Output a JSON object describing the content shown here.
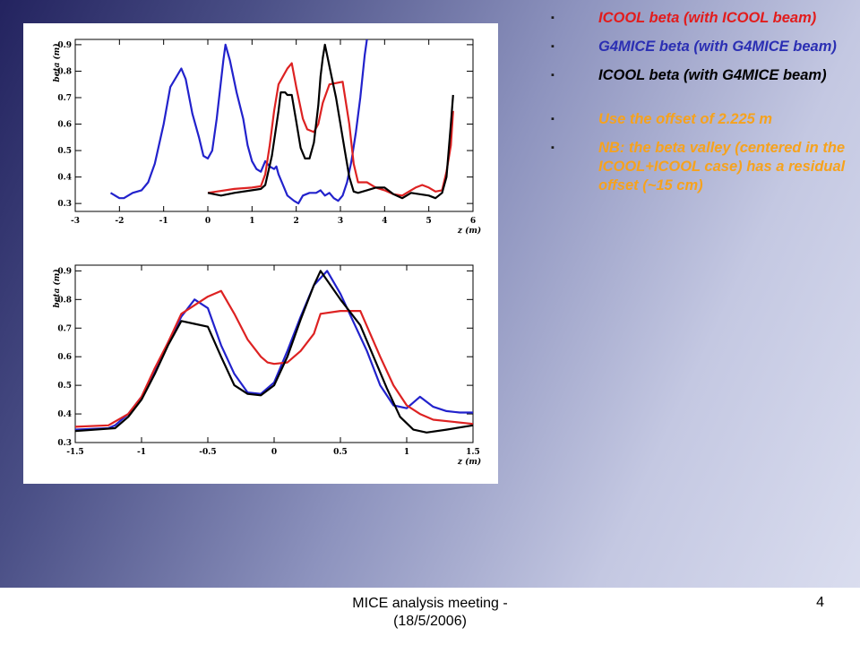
{
  "bullets": [
    {
      "text": "ICOOL beta (with ICOOL beam)",
      "color": "#e21c1c"
    },
    {
      "text": "G4MICE beta (with G4MICE beam)",
      "color": "#2b2fb3"
    },
    {
      "text": "ICOOL beta (with G4MICE beam)",
      "color": "#000000"
    },
    {
      "text": "Use the offset of 2.225 m",
      "color": "#f6a21d"
    },
    {
      "text": "NB: the beta valley (centered in the ICOOL+ICOOL case) has a residual offset (~15 cm)",
      "color": "#f6a21d"
    }
  ],
  "footer": {
    "text": "MICE analysis meeting - (18/5/2006)",
    "page": "4"
  },
  "chart_data": [
    {
      "type": "line",
      "xlabel": "z (m)",
      "ylabel": "beta (m)",
      "xlim": [
        -3,
        6
      ],
      "ylim": [
        0.27,
        0.92
      ],
      "xticks": [
        -3,
        -2,
        -1,
        0,
        1,
        2,
        3,
        4,
        5,
        6
      ],
      "yticks": [
        0.3,
        0.4,
        0.5,
        0.6,
        0.7,
        0.8,
        0.9
      ],
      "tick_labels_x": [
        "-3",
        "-2",
        "-1",
        "0",
        "1",
        "2",
        "3",
        "4",
        "5",
        "6"
      ],
      "tick_labels_y": [
        "0.3",
        "0.4",
        "0.5",
        "0.6",
        "0.7",
        "0.8",
        "0.9"
      ],
      "series": [
        {
          "color": "#2222cc",
          "points": [
            [
              -2.2,
              0.34
            ],
            [
              -2.0,
              0.32
            ],
            [
              -1.9,
              0.32
            ],
            [
              -1.7,
              0.34
            ],
            [
              -1.5,
              0.35
            ],
            [
              -1.35,
              0.38
            ],
            [
              -1.2,
              0.45
            ],
            [
              -1.0,
              0.6
            ],
            [
              -0.85,
              0.74
            ],
            [
              -0.6,
              0.81
            ],
            [
              -0.5,
              0.77
            ],
            [
              -0.35,
              0.64
            ],
            [
              -0.2,
              0.55
            ],
            [
              -0.1,
              0.48
            ],
            [
              0.0,
              0.47
            ],
            [
              0.1,
              0.5
            ],
            [
              0.2,
              0.62
            ],
            [
              0.35,
              0.84
            ],
            [
              0.4,
              0.9
            ],
            [
              0.5,
              0.84
            ],
            [
              0.65,
              0.72
            ],
            [
              0.8,
              0.62
            ],
            [
              0.9,
              0.52
            ],
            [
              1.0,
              0.46
            ],
            [
              1.1,
              0.43
            ],
            [
              1.2,
              0.42
            ],
            [
              1.3,
              0.46
            ],
            [
              1.4,
              0.44
            ],
            [
              1.5,
              0.43
            ],
            [
              1.55,
              0.44
            ],
            [
              1.6,
              0.41
            ],
            [
              1.7,
              0.37
            ],
            [
              1.8,
              0.33
            ],
            [
              1.95,
              0.31
            ],
            [
              2.05,
              0.3
            ],
            [
              2.15,
              0.33
            ],
            [
              2.3,
              0.34
            ],
            [
              2.45,
              0.34
            ],
            [
              2.55,
              0.35
            ],
            [
              2.65,
              0.33
            ],
            [
              2.75,
              0.34
            ],
            [
              2.85,
              0.32
            ],
            [
              2.95,
              0.31
            ],
            [
              3.05,
              0.33
            ],
            [
              3.15,
              0.38
            ],
            [
              3.25,
              0.46
            ],
            [
              3.35,
              0.57
            ],
            [
              3.45,
              0.7
            ],
            [
              3.55,
              0.86
            ],
            [
              3.6,
              0.92
            ]
          ]
        },
        {
          "color": "#dd2222",
          "points": [
            [
              0.0,
              0.34
            ],
            [
              0.2,
              0.345
            ],
            [
              0.6,
              0.355
            ],
            [
              1.0,
              0.36
            ],
            [
              1.2,
              0.365
            ],
            [
              1.3,
              0.41
            ],
            [
              1.4,
              0.52
            ],
            [
              1.5,
              0.65
            ],
            [
              1.6,
              0.75
            ],
            [
              1.8,
              0.81
            ],
            [
              1.9,
              0.83
            ],
            [
              2.0,
              0.74
            ],
            [
              2.15,
              0.62
            ],
            [
              2.25,
              0.58
            ],
            [
              2.4,
              0.57
            ],
            [
              2.5,
              0.6
            ],
            [
              2.6,
              0.68
            ],
            [
              2.75,
              0.75
            ],
            [
              3.05,
              0.76
            ],
            [
              3.2,
              0.6
            ],
            [
              3.3,
              0.45
            ],
            [
              3.4,
              0.38
            ],
            [
              3.6,
              0.38
            ],
            [
              3.8,
              0.36
            ],
            [
              4.0,
              0.35
            ],
            [
              4.2,
              0.335
            ],
            [
              4.4,
              0.33
            ],
            [
              4.5,
              0.34
            ],
            [
              4.7,
              0.36
            ],
            [
              4.85,
              0.37
            ],
            [
              5.0,
              0.36
            ],
            [
              5.15,
              0.345
            ],
            [
              5.3,
              0.35
            ],
            [
              5.4,
              0.42
            ],
            [
              5.5,
              0.52
            ],
            [
              5.55,
              0.65
            ]
          ]
        },
        {
          "color": "#000000",
          "points": [
            [
              0.0,
              0.34
            ],
            [
              0.3,
              0.33
            ],
            [
              0.6,
              0.34
            ],
            [
              1.0,
              0.35
            ],
            [
              1.2,
              0.355
            ],
            [
              1.3,
              0.37
            ],
            [
              1.45,
              0.48
            ],
            [
              1.6,
              0.65
            ],
            [
              1.65,
              0.72
            ],
            [
              1.75,
              0.72
            ],
            [
              1.8,
              0.71
            ],
            [
              1.9,
              0.71
            ],
            [
              2.0,
              0.61
            ],
            [
              2.1,
              0.51
            ],
            [
              2.2,
              0.47
            ],
            [
              2.3,
              0.47
            ],
            [
              2.4,
              0.53
            ],
            [
              2.5,
              0.67
            ],
            [
              2.55,
              0.78
            ],
            [
              2.6,
              0.85
            ],
            [
              2.65,
              0.9
            ],
            [
              2.7,
              0.86
            ],
            [
              2.8,
              0.78
            ],
            [
              2.9,
              0.7
            ],
            [
              3.0,
              0.6
            ],
            [
              3.1,
              0.5
            ],
            [
              3.2,
              0.4
            ],
            [
              3.3,
              0.345
            ],
            [
              3.4,
              0.34
            ],
            [
              3.6,
              0.35
            ],
            [
              3.8,
              0.36
            ],
            [
              4.0,
              0.36
            ],
            [
              4.2,
              0.335
            ],
            [
              4.4,
              0.32
            ],
            [
              4.6,
              0.34
            ],
            [
              4.8,
              0.335
            ],
            [
              5.0,
              0.33
            ],
            [
              5.15,
              0.32
            ],
            [
              5.3,
              0.34
            ],
            [
              5.4,
              0.4
            ],
            [
              5.5,
              0.6
            ],
            [
              5.55,
              0.71
            ]
          ]
        }
      ]
    },
    {
      "type": "line",
      "xlabel": "z (m)",
      "ylabel": "beta (m)",
      "xlim": [
        -1.5,
        1.5
      ],
      "ylim": [
        0.3,
        0.92
      ],
      "xticks": [
        -1.5,
        -1,
        -0.5,
        0,
        0.5,
        1,
        1.5
      ],
      "yticks": [
        0.3,
        0.4,
        0.5,
        0.6,
        0.7,
        0.8,
        0.9
      ],
      "tick_labels_x": [
        "-1.5",
        "-1",
        "-0.5",
        "0",
        "0.5",
        "1",
        "1.5"
      ],
      "tick_labels_y": [
        "0.3",
        "0.4",
        "0.5",
        "0.6",
        "0.7",
        "0.8",
        "0.9"
      ],
      "series": [
        {
          "color": "#2222cc",
          "points": [
            [
              -1.5,
              0.345
            ],
            [
              -1.25,
              0.35
            ],
            [
              -1.2,
              0.36
            ],
            [
              -1.1,
              0.4
            ],
            [
              -1.0,
              0.46
            ],
            [
              -0.9,
              0.55
            ],
            [
              -0.8,
              0.65
            ],
            [
              -0.7,
              0.74
            ],
            [
              -0.6,
              0.8
            ],
            [
              -0.5,
              0.77
            ],
            [
              -0.4,
              0.64
            ],
            [
              -0.3,
              0.54
            ],
            [
              -0.2,
              0.475
            ],
            [
              -0.1,
              0.47
            ],
            [
              0.0,
              0.51
            ],
            [
              0.1,
              0.62
            ],
            [
              0.2,
              0.74
            ],
            [
              0.3,
              0.85
            ],
            [
              0.4,
              0.9
            ],
            [
              0.5,
              0.82
            ],
            [
              0.6,
              0.72
            ],
            [
              0.7,
              0.62
            ],
            [
              0.8,
              0.5
            ],
            [
              0.9,
              0.43
            ],
            [
              1.0,
              0.42
            ],
            [
              1.1,
              0.46
            ],
            [
              1.2,
              0.425
            ],
            [
              1.3,
              0.41
            ],
            [
              1.4,
              0.405
            ],
            [
              1.5,
              0.405
            ]
          ]
        },
        {
          "color": "#dd2222",
          "points": [
            [
              -1.5,
              0.355
            ],
            [
              -1.25,
              0.36
            ],
            [
              -1.1,
              0.4
            ],
            [
              -1.0,
              0.46
            ],
            [
              -0.9,
              0.56
            ],
            [
              -0.8,
              0.65
            ],
            [
              -0.7,
              0.75
            ],
            [
              -0.6,
              0.78
            ],
            [
              -0.5,
              0.81
            ],
            [
              -0.4,
              0.83
            ],
            [
              -0.3,
              0.75
            ],
            [
              -0.2,
              0.66
            ],
            [
              -0.1,
              0.6
            ],
            [
              -0.05,
              0.58
            ],
            [
              0.0,
              0.575
            ],
            [
              0.1,
              0.58
            ],
            [
              0.2,
              0.62
            ],
            [
              0.3,
              0.68
            ],
            [
              0.35,
              0.75
            ],
            [
              0.5,
              0.76
            ],
            [
              0.65,
              0.76
            ],
            [
              0.8,
              0.6
            ],
            [
              0.9,
              0.5
            ],
            [
              1.0,
              0.43
            ],
            [
              1.1,
              0.4
            ],
            [
              1.2,
              0.38
            ],
            [
              1.5,
              0.365
            ]
          ]
        },
        {
          "color": "#000000",
          "points": [
            [
              -1.5,
              0.34
            ],
            [
              -1.2,
              0.35
            ],
            [
              -1.1,
              0.39
            ],
            [
              -1.0,
              0.45
            ],
            [
              -0.9,
              0.54
            ],
            [
              -0.8,
              0.64
            ],
            [
              -0.7,
              0.725
            ],
            [
              -0.6,
              0.715
            ],
            [
              -0.5,
              0.705
            ],
            [
              -0.4,
              0.6
            ],
            [
              -0.3,
              0.5
            ],
            [
              -0.2,
              0.47
            ],
            [
              -0.1,
              0.465
            ],
            [
              0.0,
              0.5
            ],
            [
              0.1,
              0.6
            ],
            [
              0.2,
              0.73
            ],
            [
              0.3,
              0.85
            ],
            [
              0.35,
              0.9
            ],
            [
              0.5,
              0.8
            ],
            [
              0.65,
              0.71
            ],
            [
              0.75,
              0.6
            ],
            [
              0.85,
              0.49
            ],
            [
              0.95,
              0.39
            ],
            [
              1.05,
              0.345
            ],
            [
              1.15,
              0.335
            ],
            [
              1.3,
              0.345
            ],
            [
              1.5,
              0.36
            ]
          ]
        }
      ]
    }
  ]
}
